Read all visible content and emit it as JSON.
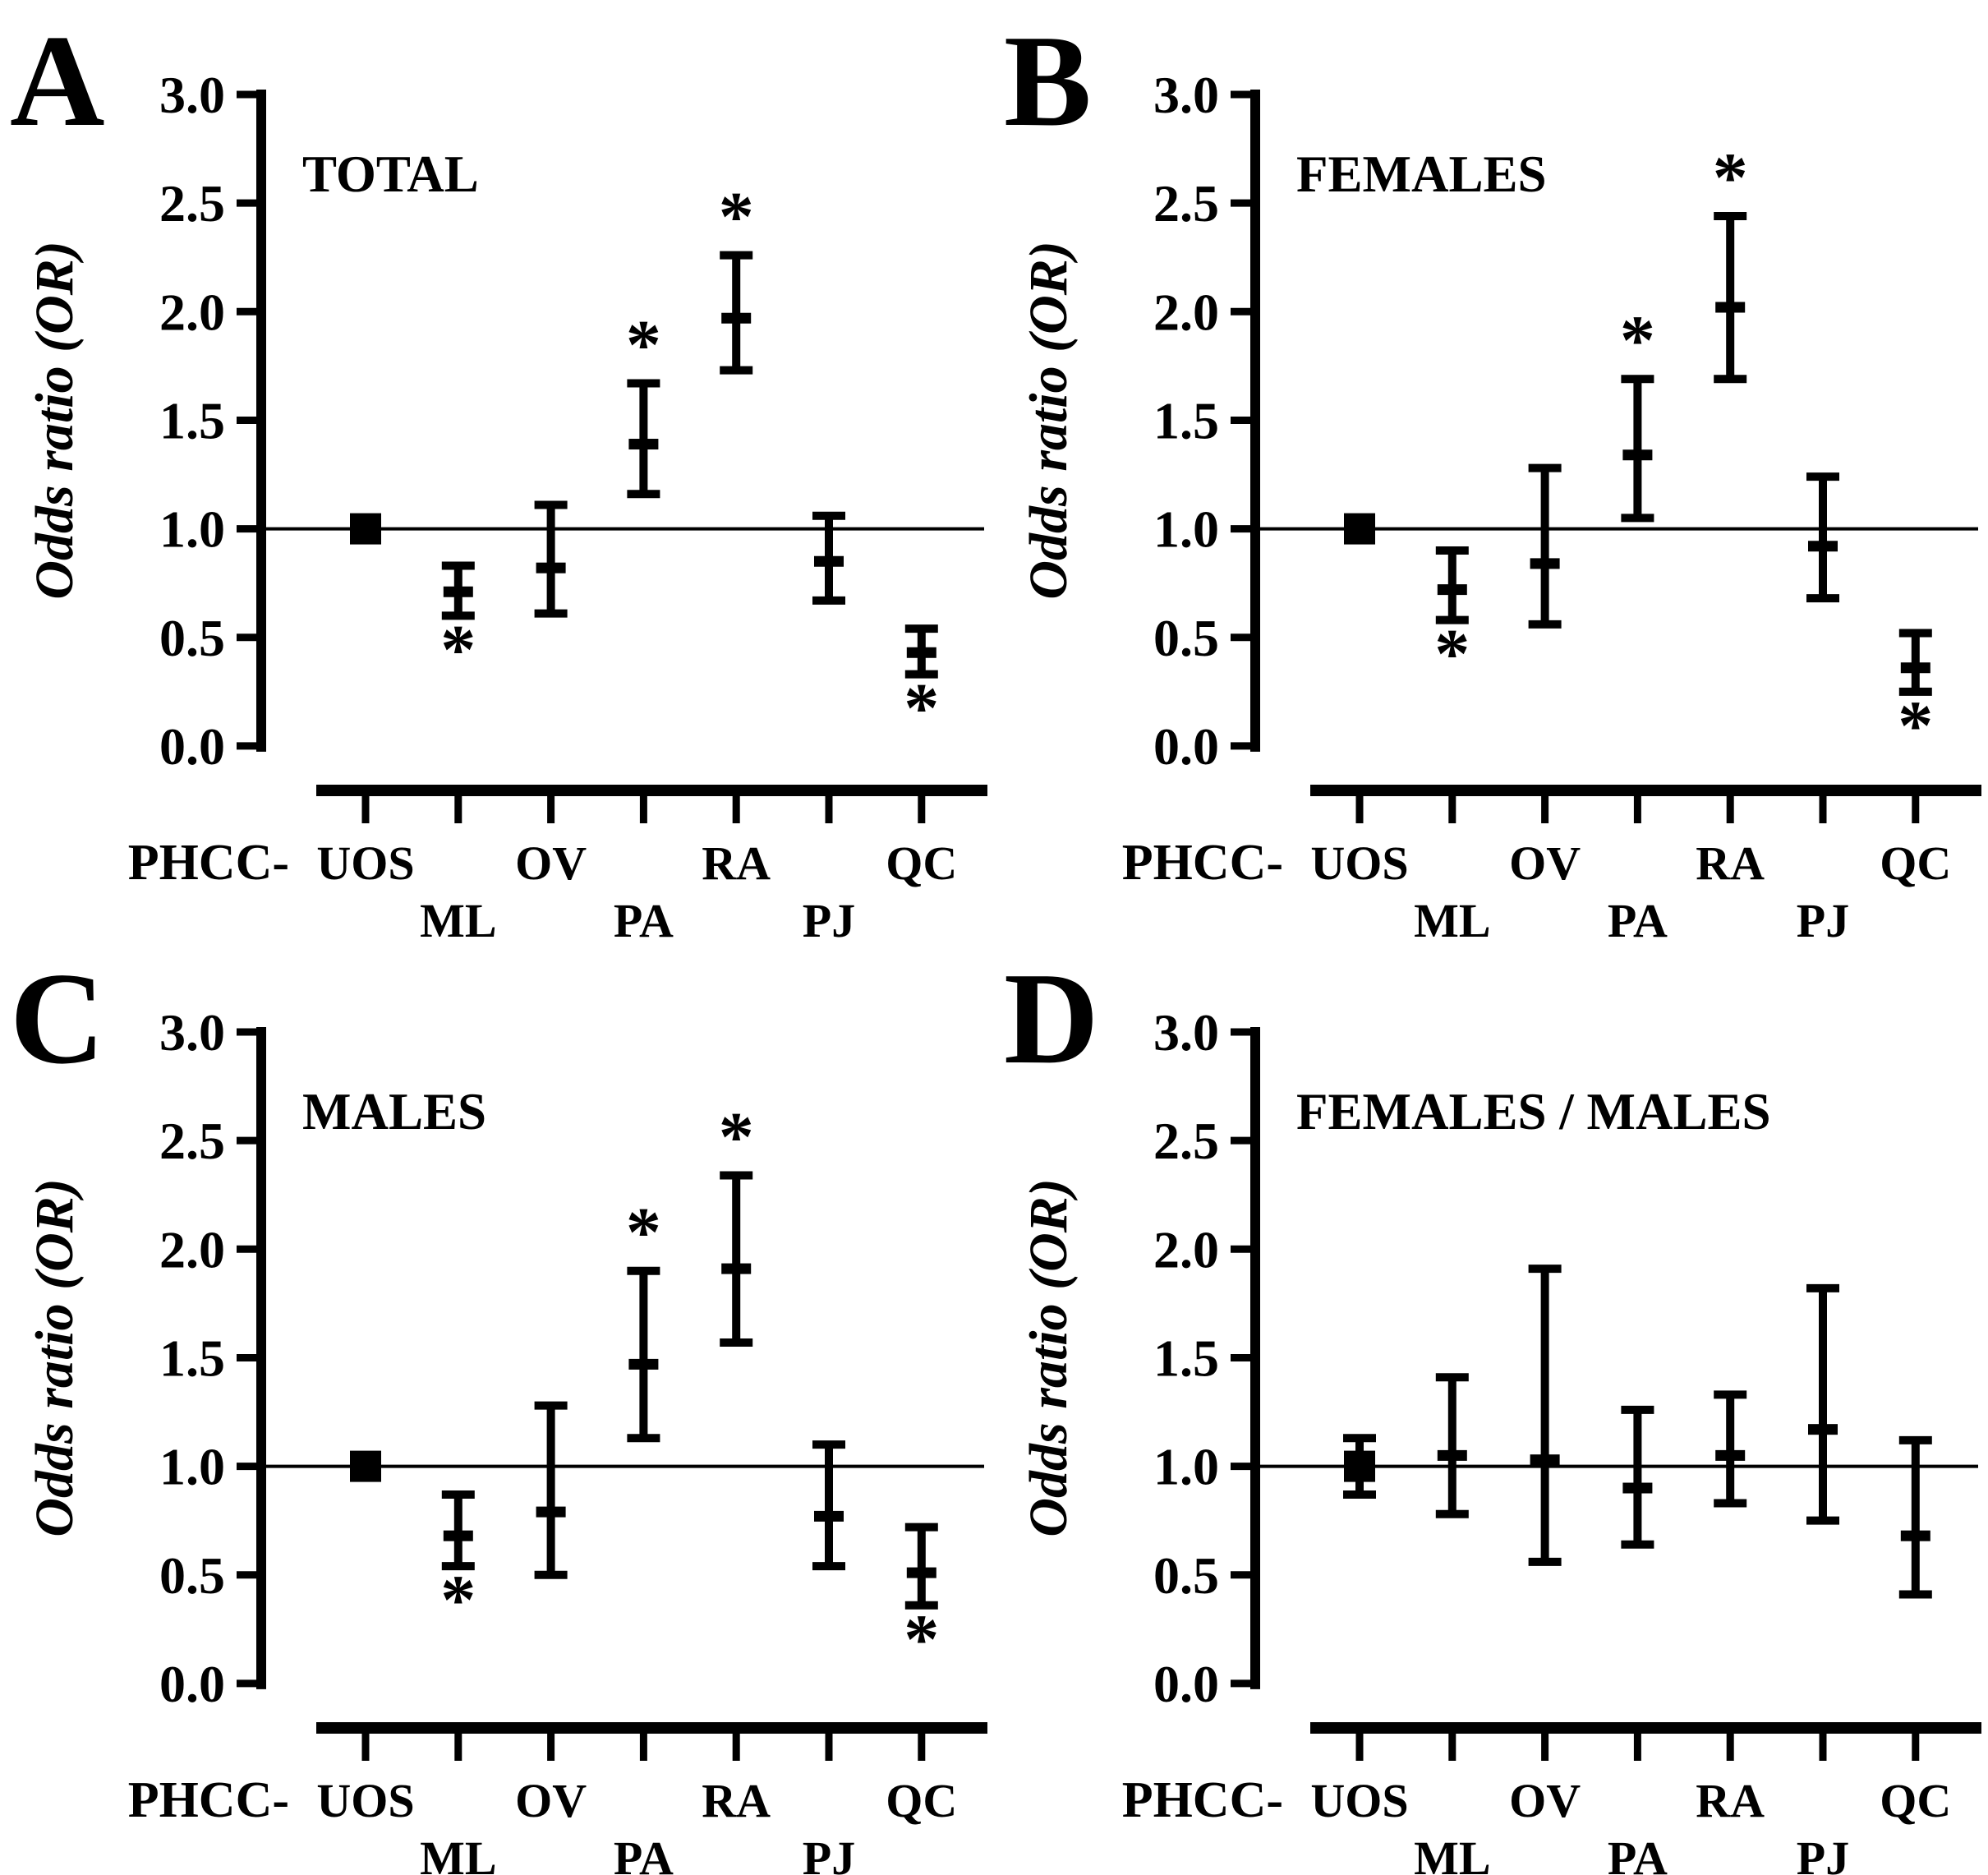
{
  "figure": {
    "background": "#ffffff",
    "ink": "#000000",
    "y_axis_label": "Odds ratio (OR)",
    "x_axis_prefix": "PHCC-",
    "y_ticks": [
      "3.0",
      "2.5",
      "2.0",
      "1.5",
      "1.0",
      "0.5",
      "0.0"
    ],
    "categories_row_top": [
      "UOS",
      "OV",
      "RA",
      "QC"
    ],
    "categories_row_bottom": [
      "ML",
      "PA",
      "PJ"
    ],
    "significance_symbol": "*"
  },
  "chart_data": [
    {
      "type": "scatter",
      "panel_letter": "A",
      "title": "TOTAL",
      "ylabel": "Odds ratio (OR)",
      "xlabel_prefix": "PHCC-",
      "ylim": [
        0.0,
        3.0
      ],
      "ytick_step": 0.5,
      "reference_line": 1.0,
      "categories": [
        "UOS",
        "ML",
        "OV",
        "PA",
        "RA",
        "PJ",
        "QC"
      ],
      "points": [
        {
          "label": "UOS",
          "or": 1.0,
          "lo": null,
          "hi": null,
          "marker": "square",
          "star": null
        },
        {
          "label": "ML",
          "or": 0.71,
          "lo": 0.6,
          "hi": 0.83,
          "marker": "dash",
          "star": "below"
        },
        {
          "label": "OV",
          "or": 0.82,
          "lo": 0.61,
          "hi": 1.11,
          "marker": "dash",
          "star": null
        },
        {
          "label": "PA",
          "or": 1.39,
          "lo": 1.16,
          "hi": 1.67,
          "marker": "dash",
          "star": "above"
        },
        {
          "label": "RA",
          "or": 1.97,
          "lo": 1.73,
          "hi": 2.26,
          "marker": "dash",
          "star": "above"
        },
        {
          "label": "PJ",
          "or": 0.85,
          "lo": 0.67,
          "hi": 1.06,
          "marker": "dash",
          "star": null
        },
        {
          "label": "QC",
          "or": 0.43,
          "lo": 0.33,
          "hi": 0.54,
          "marker": "dash",
          "star": "below"
        }
      ]
    },
    {
      "type": "scatter",
      "panel_letter": "B",
      "title": "FEMALES",
      "ylabel": "Odds ratio (OR)",
      "xlabel_prefix": "PHCC-",
      "ylim": [
        0.0,
        3.0
      ],
      "ytick_step": 0.5,
      "reference_line": 1.0,
      "categories": [
        "UOS",
        "ML",
        "OV",
        "PA",
        "RA",
        "PJ",
        "QC"
      ],
      "points": [
        {
          "label": "UOS",
          "or": 1.0,
          "lo": null,
          "hi": null,
          "marker": "square",
          "star": null
        },
        {
          "label": "ML",
          "or": 0.72,
          "lo": 0.58,
          "hi": 0.9,
          "marker": "dash",
          "star": "below"
        },
        {
          "label": "OV",
          "or": 0.84,
          "lo": 0.56,
          "hi": 1.28,
          "marker": "dash",
          "star": null
        },
        {
          "label": "PA",
          "or": 1.34,
          "lo": 1.05,
          "hi": 1.69,
          "marker": "dash",
          "star": "above"
        },
        {
          "label": "RA",
          "or": 2.02,
          "lo": 1.69,
          "hi": 2.44,
          "marker": "dash",
          "star": "above"
        },
        {
          "label": "PJ",
          "or": 0.92,
          "lo": 0.68,
          "hi": 1.24,
          "marker": "dash",
          "star": null
        },
        {
          "label": "QC",
          "or": 0.36,
          "lo": 0.25,
          "hi": 0.52,
          "marker": "dash",
          "star": "below"
        }
      ]
    },
    {
      "type": "scatter",
      "panel_letter": "C",
      "title": "MALES",
      "ylabel": "Odds ratio (OR)",
      "xlabel_prefix": "PHCC-",
      "ylim": [
        0.0,
        3.0
      ],
      "ytick_step": 0.5,
      "reference_line": 1.0,
      "categories": [
        "UOS",
        "ML",
        "OV",
        "PA",
        "RA",
        "PJ",
        "QC"
      ],
      "points": [
        {
          "label": "UOS",
          "or": 1.0,
          "lo": null,
          "hi": null,
          "marker": "square",
          "star": null
        },
        {
          "label": "ML",
          "or": 0.68,
          "lo": 0.54,
          "hi": 0.87,
          "marker": "dash",
          "star": "below"
        },
        {
          "label": "OV",
          "or": 0.79,
          "lo": 0.5,
          "hi": 1.28,
          "marker": "dash",
          "star": null
        },
        {
          "label": "PA",
          "or": 1.47,
          "lo": 1.13,
          "hi": 1.9,
          "marker": "dash",
          "star": "above"
        },
        {
          "label": "RA",
          "or": 1.91,
          "lo": 1.57,
          "hi": 2.34,
          "marker": "dash",
          "star": "above"
        },
        {
          "label": "PJ",
          "or": 0.77,
          "lo": 0.54,
          "hi": 1.1,
          "marker": "dash",
          "star": null
        },
        {
          "label": "QC",
          "or": 0.51,
          "lo": 0.36,
          "hi": 0.72,
          "marker": "dash",
          "star": "below"
        }
      ]
    },
    {
      "type": "scatter",
      "panel_letter": "D",
      "title": "FEMALES / MALES",
      "ylabel": "Odds ratio (OR)",
      "xlabel_prefix": "PHCC-",
      "ylim": [
        0.0,
        3.0
      ],
      "ytick_step": 0.5,
      "reference_line": 1.0,
      "categories": [
        "UOS",
        "ML",
        "OV",
        "PA",
        "RA",
        "PJ",
        "QC"
      ],
      "points": [
        {
          "label": "UOS",
          "or": 1.0,
          "lo": 0.87,
          "hi": 1.13,
          "marker": "square",
          "star": null
        },
        {
          "label": "ML",
          "or": 1.05,
          "lo": 0.78,
          "hi": 1.41,
          "marker": "dash",
          "star": null
        },
        {
          "label": "OV",
          "or": 1.03,
          "lo": 0.56,
          "hi": 1.91,
          "marker": "dash",
          "star": null
        },
        {
          "label": "PA",
          "or": 0.9,
          "lo": 0.64,
          "hi": 1.26,
          "marker": "dash",
          "star": null
        },
        {
          "label": "RA",
          "or": 1.05,
          "lo": 0.83,
          "hi": 1.33,
          "marker": "dash",
          "star": null
        },
        {
          "label": "PJ",
          "or": 1.17,
          "lo": 0.75,
          "hi": 1.82,
          "marker": "dash",
          "star": null
        },
        {
          "label": "QC",
          "or": 0.68,
          "lo": 0.41,
          "hi": 1.12,
          "marker": "dash",
          "star": null
        }
      ]
    }
  ]
}
